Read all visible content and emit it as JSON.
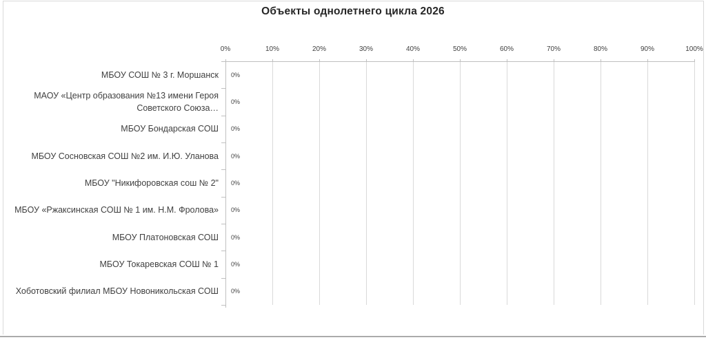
{
  "title": "Объекты однолетнего цикла 2026",
  "chart_data": {
    "type": "bar",
    "orientation": "horizontal",
    "title": "Объекты однолетнего цикла 2026",
    "categories": [
      "МБОУ СОШ № 3 г. Моршанск",
      "МАОУ «Центр образования №13 имени Героя\nСоветского Союза…",
      "МБОУ Бондарская СОШ",
      "МБОУ Сосновская СОШ №2 им. И.Ю. Уланова",
      "МБОУ \"Никифоровская сош № 2\"",
      "МБОУ «Ржаксинская СОШ № 1 им. Н.М. Фролова»",
      "МБОУ Платоновская СОШ",
      "МБОУ Токаревская СОШ № 1",
      "Хоботовский филиал МБОУ Новоникольская СОШ"
    ],
    "values": [
      0,
      0,
      0,
      0,
      0,
      0,
      0,
      0,
      0
    ],
    "data_labels": [
      "0%",
      "0%",
      "0%",
      "0%",
      "0%",
      "0%",
      "0%",
      "0%",
      "0%"
    ],
    "x_tick_labels": [
      "0%",
      "10%",
      "20%",
      "30%",
      "40%",
      "50%",
      "60%",
      "70%",
      "80%",
      "90%",
      "100%"
    ],
    "xlim": [
      0,
      100
    ],
    "grid": true,
    "x_axis_position": "top",
    "legend": "none"
  },
  "colors": {
    "background": "#ffffff",
    "title_text": "#262626",
    "label_text": "#404040",
    "gridline": "#d9d9d9",
    "axis_line": "#bfbfbf",
    "frame_border": "#d9d9d9",
    "bottom_edge": "#ababab"
  }
}
